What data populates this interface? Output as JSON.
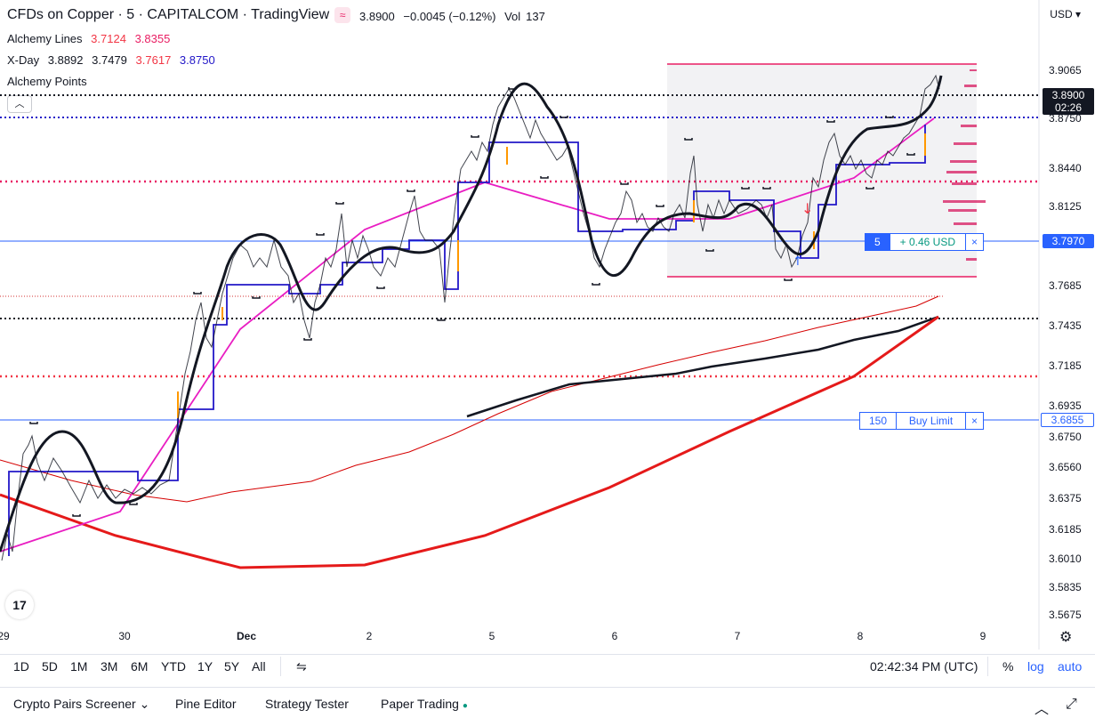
{
  "header": {
    "title": "CFDs on Copper · 5 · CAPITALCOM · TradingView",
    "ohlc": {
      "close": "3.8900",
      "change": "−0.0045 (−0.12%)",
      "vol_label": "Vol",
      "vol": "137"
    }
  },
  "indicators": [
    {
      "name": "Alchemy Lines",
      "values": [
        "3.7124",
        "3.8355"
      ]
    },
    {
      "name": "X-Day",
      "values": [
        "3.8892",
        "3.7479",
        "3.7617",
        "3.8750"
      ]
    },
    {
      "name": "Alchemy Points",
      "values": []
    }
  ],
  "currency": "USD",
  "price_scale": {
    "ticks": [
      "3.9065",
      "3.8750",
      "3.8440",
      "3.8125",
      "3.7685",
      "3.7435",
      "3.7185",
      "3.6935",
      "3.6750",
      "3.6560",
      "3.6375",
      "3.6185",
      "3.6010",
      "3.5835",
      "3.5675"
    ],
    "last_price": "3.8900",
    "countdown": "02:26",
    "position_price": "3.7970",
    "order_price": "3.6855"
  },
  "position_line": {
    "qty": "5",
    "pnl": "+ 0.46 USD",
    "close": "×"
  },
  "order_line": {
    "qty": "150",
    "label": "Buy Limit",
    "close": "×"
  },
  "xaxis": [
    "29",
    "30",
    "Dec",
    "2",
    "5",
    "6",
    "7",
    "8",
    "9"
  ],
  "toolbar": {
    "ranges": [
      "1D",
      "5D",
      "1M",
      "3M",
      "6M",
      "YTD",
      "1Y",
      "5Y",
      "All"
    ],
    "time": "02:42:34 PM (UTC)",
    "percent": "%",
    "log": "log",
    "auto": "auto"
  },
  "bottom_bar": {
    "tabs": [
      "Crypto Pairs Screener",
      "Pine Editor",
      "Strategy Tester",
      "Paper Trading"
    ]
  },
  "logo_text": "17",
  "colors": {
    "accent": "#2962ff",
    "red": "#f23645",
    "magenta": "#e91e63",
    "navy": "#2217c8"
  }
}
